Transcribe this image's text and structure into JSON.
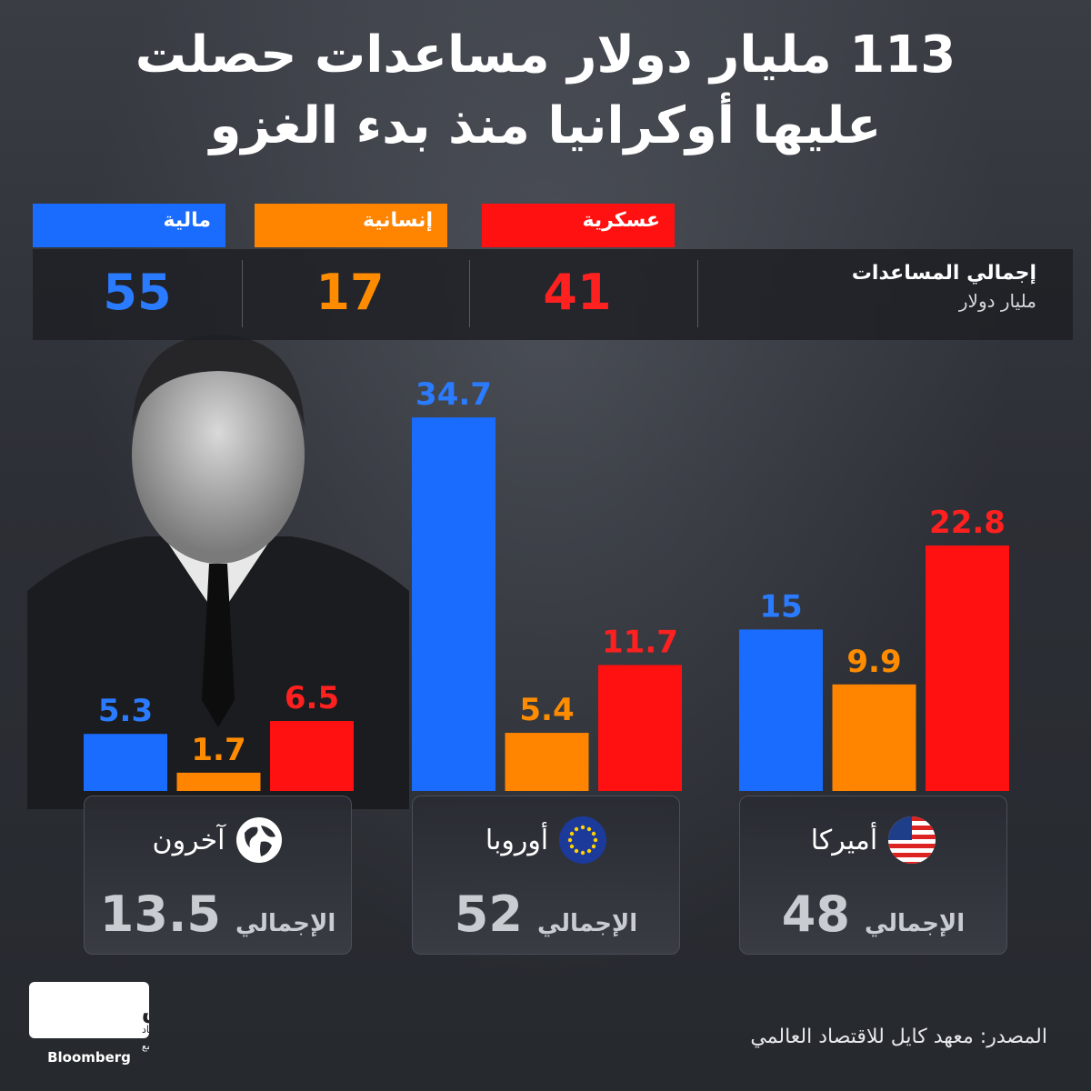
{
  "title": {
    "line1": "113 مليار دولار مساعدات حصلت",
    "line2": "عليها أوكرانيا منذ بدء الغزو"
  },
  "legend": {
    "military": "عسكرية",
    "humanitarian": "إنسانية",
    "financial": "مالية"
  },
  "totals": {
    "label": "إجمالي المساعدات",
    "unit": "مليار دولار",
    "military": "41",
    "humanitarian": "17",
    "financial": "55"
  },
  "colors": {
    "financial": "#1a6cff",
    "humanitarian": "#ff8400",
    "military": "#ff1111",
    "financial_text": "#2a7bff",
    "humanitarian_text": "#ff8c00",
    "military_text": "#ff2020"
  },
  "chart_data": {
    "type": "bar",
    "categories": [
      "أميركا",
      "أوروبا",
      "آخرون"
    ],
    "series": [
      {
        "name": "مالية",
        "values": [
          15,
          34.7,
          5.3
        ]
      },
      {
        "name": "إنسانية",
        "values": [
          9.9,
          5.4,
          1.7
        ]
      },
      {
        "name": "عسكرية",
        "values": [
          22.8,
          11.7,
          6.5
        ]
      }
    ],
    "value_labels": {
      "financial": [
        "15",
        "34.7",
        "5.3"
      ],
      "humanitarian": [
        "9.9",
        "5.4",
        "1.7"
      ],
      "military": [
        "22.8",
        "11.7",
        "6.5"
      ]
    },
    "title": "113 مليار دولار مساعدات حصلت عليها أوكرانيا منذ بدء الغزو",
    "ylabel": "مليار دولار",
    "ylim": [
      0,
      40
    ],
    "grid": false,
    "legend": "top"
  },
  "cards": [
    {
      "name": "أميركا",
      "total_label": "الإجمالي",
      "total": "48",
      "icon": "us-flag-icon"
    },
    {
      "name": "أوروبا",
      "total_label": "الإجمالي",
      "total": "52",
      "icon": "eu-flag-icon"
    },
    {
      "name": "آخرون",
      "total_label": "الإجمالي",
      "total": "13.5",
      "icon": "globe-icon"
    }
  ],
  "source": "المصدر: معهد كايل للاقتصاد العالمي",
  "logo": {
    "name": "الشرق",
    "sub": "اقتصاد",
    "with": "مع",
    "brand": "Bloomberg"
  }
}
